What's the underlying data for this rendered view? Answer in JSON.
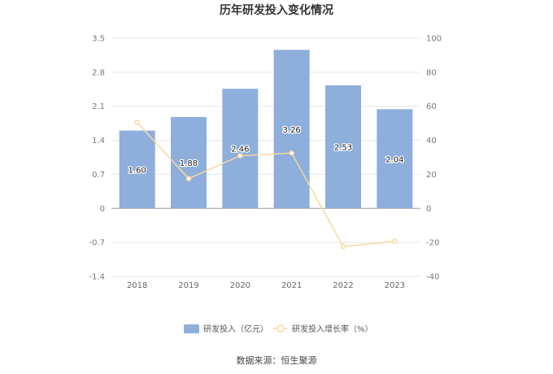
{
  "chart_data": {
    "type": "bar",
    "title": "历年研发投入变化情况",
    "categories": [
      "2018",
      "2019",
      "2020",
      "2021",
      "2022",
      "2023"
    ],
    "series": [
      {
        "name": "研发投入（亿元）",
        "type": "bar",
        "axis": "left",
        "color": "#8eaedb",
        "values": [
          1.6,
          1.88,
          2.46,
          3.26,
          2.53,
          2.04
        ],
        "labels": [
          "1.60",
          "1.88",
          "2.46",
          "3.26",
          "2.53",
          "2.04"
        ]
      },
      {
        "name": "研发投入增长率（%）",
        "type": "line",
        "axis": "right",
        "color": "#f7d9a0",
        "values": [
          50.5,
          17.5,
          30.9,
          32.5,
          -22.4,
          -19.4
        ]
      }
    ],
    "y_left": {
      "ticks": [
        "3.5",
        "2.8",
        "2.1",
        "1.4",
        "0.7",
        "0",
        "-0.7",
        "-1.4"
      ],
      "ylim": [
        -1.4,
        3.5
      ]
    },
    "y_right": {
      "ticks": [
        "100",
        "80",
        "60",
        "40",
        "20",
        "0",
        "-20",
        "-40"
      ],
      "ylim": [
        -40,
        100
      ]
    },
    "grid": true,
    "legend_position": "bottom"
  },
  "source": "数据来源：恒生聚源"
}
